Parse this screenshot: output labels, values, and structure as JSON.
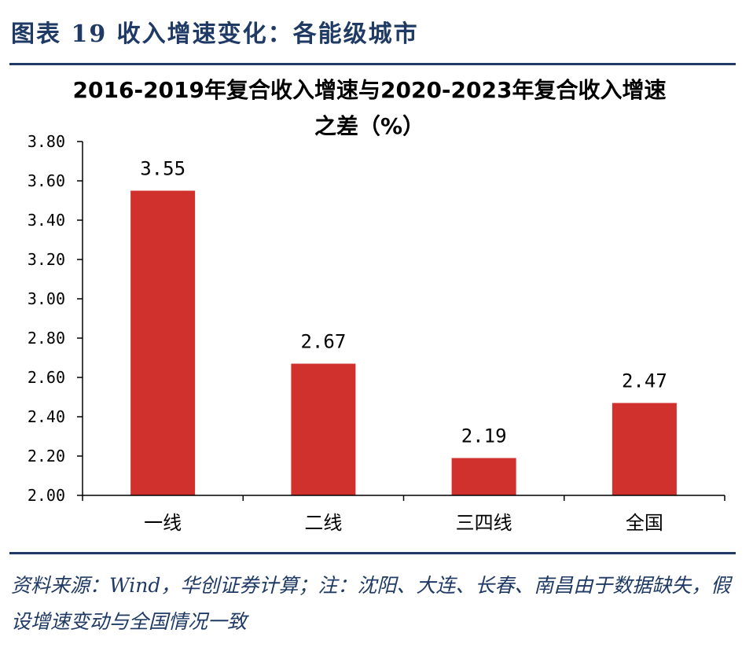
{
  "figure_header": "图表 19   收入增速变化：各能级城市",
  "source_note": "资料来源：Wind，华创证券计算；注：沈阳、大连、长春、南昌由于数据缺失，假设增速变动与全国情况一致",
  "chart_data": {
    "type": "bar",
    "title": "2016-2019年复合收入增速与2020-2023年复合收入增速之差（%）",
    "categories": [
      "一线",
      "二线",
      "三四线",
      "全国"
    ],
    "values": [
      3.55,
      2.67,
      2.19,
      2.47
    ],
    "data_labels": [
      "3.55",
      "2.67",
      "2.19",
      "2.47"
    ],
    "yticks": [
      "2.00",
      "2.20",
      "2.40",
      "2.60",
      "2.80",
      "3.00",
      "3.20",
      "3.40",
      "3.60",
      "3.80"
    ],
    "ylim": [
      2.0,
      3.8
    ],
    "bar_color": "#d0312d",
    "grid": false,
    "legend": "none"
  }
}
